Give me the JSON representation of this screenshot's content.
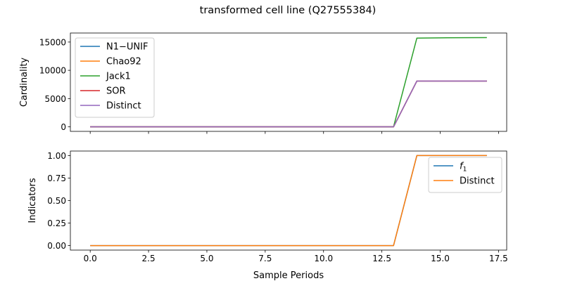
{
  "figure": {
    "title": "transformed cell line (Q27555384)"
  },
  "chart_data": [
    {
      "type": "line",
      "ylabel": "Cardinality",
      "xlabel": "",
      "xlim": [
        -0.85,
        17.85
      ],
      "ylim": [
        -800,
        16600
      ],
      "xticks": [
        0,
        2.5,
        5,
        7.5,
        10,
        12.5,
        15,
        17.5
      ],
      "xtick_labels_visible": false,
      "yticks": [
        0,
        5000,
        10000,
        15000
      ],
      "ytick_labels": [
        "0",
        "5000",
        "10000",
        "15000"
      ],
      "legend": "upper left",
      "x": [
        0,
        1,
        2,
        3,
        4,
        5,
        6,
        7,
        8,
        9,
        10,
        11,
        12,
        13,
        14,
        15,
        16,
        17
      ],
      "series": [
        {
          "name": "N1−UNIF",
          "color": "#1f77b4",
          "values": [
            0,
            0,
            0,
            0,
            0,
            0,
            0,
            0,
            0,
            0,
            0,
            0,
            0,
            0,
            8100,
            8100,
            8100,
            8100
          ]
        },
        {
          "name": "Chao92",
          "color": "#ff7f0e",
          "values": [
            0,
            0,
            0,
            0,
            0,
            0,
            0,
            0,
            0,
            0,
            0,
            0,
            0,
            0,
            8100,
            8100,
            8100,
            8100
          ]
        },
        {
          "name": "Jack1",
          "color": "#2ca02c",
          "values": [
            0,
            0,
            0,
            0,
            0,
            0,
            0,
            0,
            0,
            0,
            0,
            0,
            0,
            0,
            15700,
            15750,
            15780,
            15800
          ]
        },
        {
          "name": "SOR",
          "color": "#d62728",
          "values": [
            0,
            0,
            0,
            0,
            0,
            0,
            0,
            0,
            0,
            0,
            0,
            0,
            0,
            0,
            8100,
            8100,
            8100,
            8100
          ]
        },
        {
          "name": "Distinct",
          "color": "#9467bd",
          "values": [
            0,
            0,
            0,
            0,
            0,
            0,
            0,
            0,
            0,
            0,
            0,
            0,
            0,
            0,
            8100,
            8100,
            8100,
            8100
          ]
        }
      ]
    },
    {
      "type": "line",
      "ylabel": "Indicators",
      "xlabel": "Sample Periods",
      "xlim": [
        -0.85,
        17.85
      ],
      "ylim": [
        -0.05,
        1.05
      ],
      "xticks": [
        0,
        2.5,
        5,
        7.5,
        10,
        12.5,
        15,
        17.5
      ],
      "xtick_labels": [
        "0.0",
        "2.5",
        "5.0",
        "7.5",
        "10.0",
        "12.5",
        "15.0",
        "17.5"
      ],
      "yticks": [
        0,
        0.25,
        0.5,
        0.75,
        1.0
      ],
      "ytick_labels": [
        "0.00",
        "0.25",
        "0.50",
        "0.75",
        "1.00"
      ],
      "legend": "upper right",
      "x": [
        0,
        1,
        2,
        3,
        4,
        5,
        6,
        7,
        8,
        9,
        10,
        11,
        12,
        13,
        14,
        15,
        16,
        17
      ],
      "series": [
        {
          "name": "f",
          "name_subscript": "1",
          "color": "#1f77b4",
          "values": [
            0,
            0,
            0,
            0,
            0,
            0,
            0,
            0,
            0,
            0,
            0,
            0,
            0,
            0,
            1,
            1,
            1,
            1
          ]
        },
        {
          "name": "Distinct",
          "color": "#ff7f0e",
          "values": [
            0,
            0,
            0,
            0,
            0,
            0,
            0,
            0,
            0,
            0,
            0,
            0,
            0,
            0,
            1,
            1,
            1,
            1
          ]
        }
      ]
    }
  ]
}
